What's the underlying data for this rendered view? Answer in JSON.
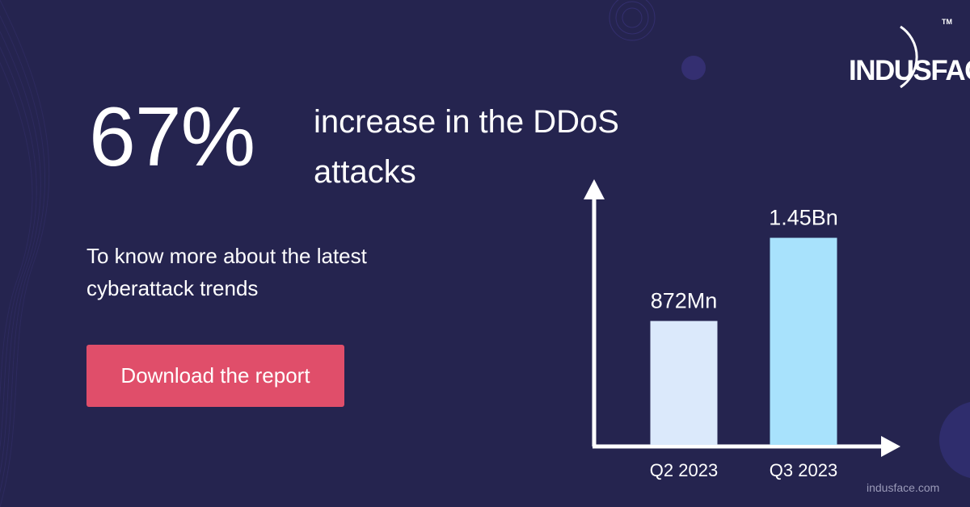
{
  "brand": {
    "logo_text": "INDUSFACE",
    "trademark": "TM",
    "website": "indusface.com"
  },
  "headline": {
    "stat": "67%",
    "text": "increase in the DDoS attacks"
  },
  "subtext": "To know more about the latest cyberattack trends",
  "cta": {
    "label": "Download the report"
  },
  "colors": {
    "background": "#25244f",
    "cta": "#e04e6a",
    "bar_q2": "#dbe9fb",
    "bar_q3": "#a8e2fc",
    "axis": "#ffffff"
  },
  "chart_data": {
    "type": "bar",
    "categories": [
      "Q2 2023",
      "Q3 2023"
    ],
    "values": [
      872,
      1450
    ],
    "value_unit": "million DDoS attacks",
    "data_labels": [
      "872Mn",
      "1.45Bn"
    ],
    "ylim": [
      0,
      1700
    ],
    "grid": false,
    "legend": "none",
    "axis_arrows": true
  }
}
